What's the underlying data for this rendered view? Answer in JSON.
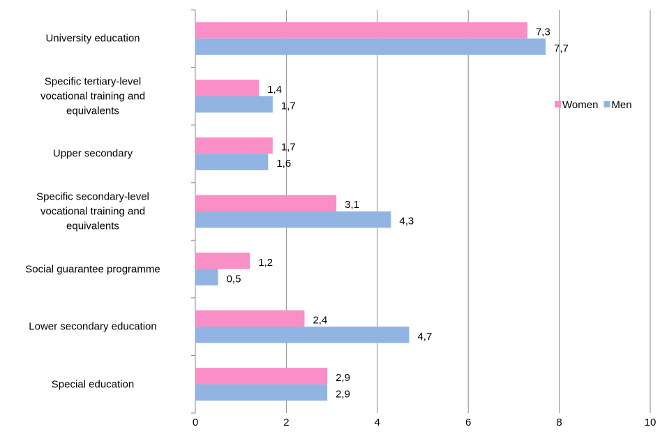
{
  "chart_data": {
    "type": "barh",
    "categories": [
      "University education",
      "Specific tertiary-level\nvocational training and\nequivalents",
      "Upper secondary",
      "Specific secondary-level\nvocational training and\nequivalents",
      "Social guarantee  programme",
      "Lower secondary education",
      "Special education"
    ],
    "series": [
      {
        "name": "Women",
        "color": "#f98fc6",
        "values": [
          7.3,
          1.4,
          1.7,
          3.1,
          1.2,
          2.4,
          2.9
        ],
        "value_labels": [
          "7,3",
          "1,4",
          "1,7",
          "3,1",
          "1,2",
          "2,4",
          "2,9"
        ]
      },
      {
        "name": "Men",
        "color": "#92b4e3",
        "values": [
          7.7,
          1.7,
          1.6,
          4.3,
          0.5,
          4.7,
          2.9
        ],
        "value_labels": [
          "7,7",
          "1,7",
          "1,6",
          "4,3",
          "0,5",
          "4,7",
          "2,9"
        ]
      }
    ],
    "xlim": [
      0,
      10
    ],
    "xticks": [
      0,
      2,
      4,
      6,
      8,
      10
    ],
    "grid": true,
    "legend": "right"
  }
}
